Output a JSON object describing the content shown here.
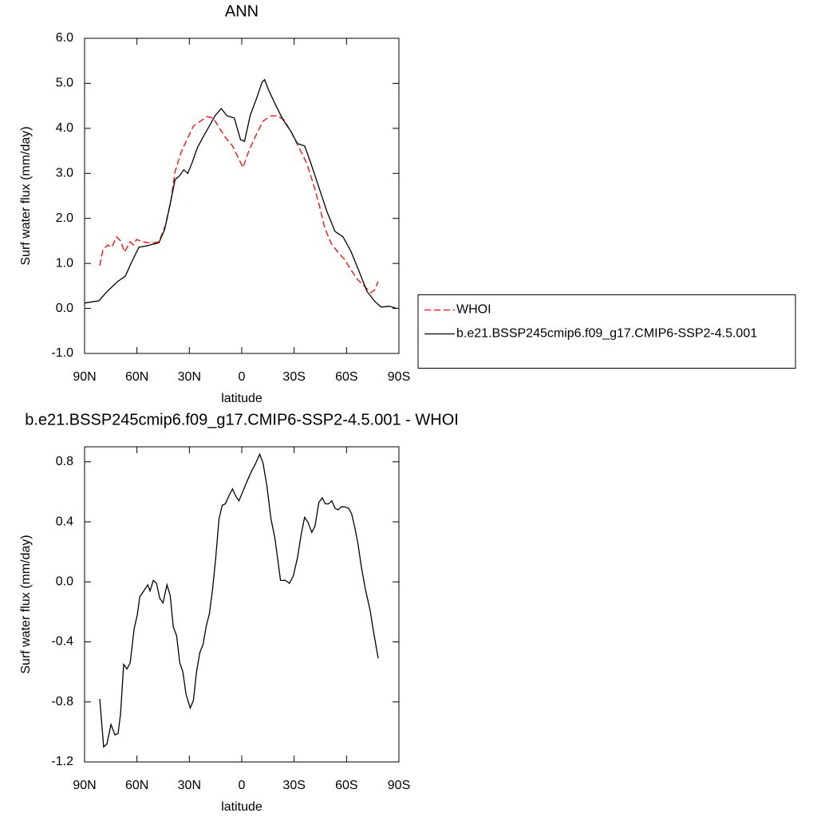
{
  "chart_data": [
    {
      "type": "line",
      "title": "ANN",
      "xlabel": "latitude",
      "ylabel": "Surf water flux (mm/day)",
      "xlim": [
        90,
        -90
      ],
      "xticks": [
        {
          "value": 90,
          "label": "90N"
        },
        {
          "value": 60,
          "label": "60N"
        },
        {
          "value": 30,
          "label": "30N"
        },
        0,
        {
          "value": -30,
          "label": "30S"
        },
        {
          "value": -60,
          "label": "60S"
        },
        {
          "value": -90,
          "label": "90S"
        }
      ],
      "ylim": [
        -1,
        6
      ],
      "yticks": [
        {
          "value": -1,
          "label": "-1.0"
        },
        {
          "value": 0,
          "label": "0.0"
        },
        {
          "value": 1,
          "label": "1.0"
        },
        {
          "value": 2,
          "label": "2.0"
        },
        {
          "value": 3,
          "label": "3.0"
        },
        {
          "value": 4,
          "label": "4.0"
        },
        {
          "value": 5,
          "label": "5.0"
        },
        {
          "value": 6,
          "label": "6.0"
        }
      ],
      "legend": "right",
      "series": [
        {
          "name": "WHOI",
          "color": "#ff0000",
          "dash": "dashed",
          "x": [
            81.3,
            79.5,
            76.7,
            74.4,
            71.7,
            69.4,
            67.1,
            63.9,
            62.1,
            60.2,
            56.6,
            52.0,
            47.4,
            43.7,
            40.5,
            38.2,
            34.6,
            31.4,
            27.7,
            23.6,
            19.9,
            16.3,
            13.0,
            9.4,
            5.3,
            2.5,
            -0.7,
            -3.9,
            -7.6,
            -12.2,
            -16.7,
            -20.4,
            -24.1,
            -28.2,
            -32.8,
            -37.3,
            -41.0,
            -44.2,
            -47.4,
            -51.1,
            -55.7,
            -58.9,
            -62.5,
            -66.2,
            -70.8,
            -74.0,
            -76.3,
            -78.1
          ],
          "values": [
            0.95,
            1.3,
            1.41,
            1.36,
            1.59,
            1.5,
            1.25,
            1.48,
            1.41,
            1.53,
            1.48,
            1.45,
            1.48,
            1.84,
            2.42,
            3.04,
            3.48,
            3.75,
            4.05,
            4.16,
            4.26,
            4.23,
            4.02,
            3.8,
            3.61,
            3.39,
            3.13,
            3.48,
            3.8,
            4.16,
            4.28,
            4.28,
            4.19,
            3.93,
            3.57,
            3.22,
            2.77,
            2.33,
            1.8,
            1.45,
            1.22,
            1.09,
            0.86,
            0.65,
            0.47,
            0.35,
            0.42,
            0.6
          ]
        },
        {
          "name": "b.e21.BSSP245cmip6.f09_g17.CMIP6-SSP2-4.5.001",
          "color": "#000000",
          "dash": "solid",
          "x": [
            90,
            81.8,
            77,
            71,
            66.6,
            63.4,
            58.9,
            54.3,
            47.4,
            44.2,
            41.4,
            38.2,
            35.5,
            33.2,
            30.9,
            28.6,
            25.4,
            21.7,
            19.0,
            15.3,
            11.7,
            8.5,
            4.3,
            0.7,
            -1.6,
            -4.8,
            -8.5,
            -11.7,
            -13.1,
            -15.4,
            -19.0,
            -23.6,
            -28.2,
            -31.9,
            -36.0,
            -39.6,
            -44.2,
            -48.8,
            -53.4,
            -58.0,
            -62.5,
            -67.1,
            -71.7,
            -76.3,
            -79.9,
            -84.5,
            -88.7
          ],
          "values": [
            0.12,
            0.17,
            0.38,
            0.6,
            0.72,
            1.0,
            1.36,
            1.39,
            1.46,
            1.75,
            2.24,
            2.86,
            2.95,
            3.08,
            3.0,
            3.22,
            3.57,
            3.84,
            4.02,
            4.28,
            4.44,
            4.28,
            4.23,
            3.75,
            3.71,
            4.28,
            4.67,
            5.03,
            5.08,
            4.85,
            4.55,
            4.19,
            3.93,
            3.66,
            3.61,
            3.22,
            2.69,
            2.15,
            1.71,
            1.59,
            1.27,
            0.83,
            0.38,
            0.15,
            0.03,
            0.05,
            0.0
          ]
        }
      ]
    },
    {
      "type": "line",
      "title": "b.e21.BSSP245cmip6.f09_g17.CMIP6-SSP2-4.5.001 - WHOI",
      "xlabel": "latitude",
      "ylabel": "Surf water flux (mm/day)",
      "xlim": [
        90,
        -90
      ],
      "xticks": [
        {
          "value": 90,
          "label": "90N"
        },
        {
          "value": 60,
          "label": "60N"
        },
        {
          "value": 30,
          "label": "30N"
        },
        0,
        {
          "value": -30,
          "label": "30S"
        },
        {
          "value": -60,
          "label": "60S"
        },
        {
          "value": -90,
          "label": "90S"
        }
      ],
      "ylim": [
        -1.2,
        0.9
      ],
      "yticks": [
        -1.2,
        -0.8,
        -0.4,
        {
          "value": 0,
          "label": "0.0"
        },
        0.4,
        0.8
      ],
      "series": [
        {
          "color": "#000000",
          "dash": "solid",
          "x": [
            81.3,
            79.1,
            77.2,
            74.9,
            72.6,
            70.8,
            69.4,
            67.6,
            65.7,
            63.9,
            61.6,
            59.8,
            58.4,
            56.1,
            53.8,
            52.5,
            50.6,
            48.8,
            46.9,
            45.1,
            42.8,
            41.0,
            39.2,
            37.3,
            35.5,
            33.7,
            31.9,
            29.5,
            27.7,
            25.9,
            24.0,
            22.2,
            20.4,
            18.5,
            16.7,
            14.9,
            13.0,
            11.2,
            9.4,
            7.5,
            5.3,
            3.4,
            1.6,
            -0.2,
            -3.0,
            -5.7,
            -7.6,
            -10.3,
            -12.2,
            -14.4,
            -16.7,
            -19.0,
            -22.2,
            -25.0,
            -27.3,
            -29.5,
            -31.9,
            -34.1,
            -36.0,
            -37.8,
            -40.1,
            -41.9,
            -44.2,
            -46.1,
            -47.9,
            -49.7,
            -51.6,
            -53.4,
            -55.2,
            -57.0,
            -58.9,
            -61.2,
            -63.0,
            -64.8,
            -66.6,
            -68.5,
            -70.8,
            -73.5,
            -75.3,
            -78.1
          ],
          "values": [
            -0.78,
            -1.1,
            -1.08,
            -0.95,
            -1.02,
            -1.01,
            -0.88,
            -0.55,
            -0.58,
            -0.54,
            -0.31,
            -0.22,
            -0.1,
            -0.06,
            -0.02,
            -0.06,
            0.01,
            -0.01,
            -0.11,
            -0.14,
            -0.02,
            -0.09,
            -0.3,
            -0.36,
            -0.54,
            -0.6,
            -0.75,
            -0.84,
            -0.79,
            -0.6,
            -0.47,
            -0.42,
            -0.3,
            -0.21,
            -0.05,
            0.16,
            0.42,
            0.51,
            0.52,
            0.57,
            0.62,
            0.57,
            0.54,
            0.59,
            0.67,
            0.74,
            0.78,
            0.85,
            0.79,
            0.64,
            0.42,
            0.29,
            0.01,
            0.01,
            -0.01,
            0.04,
            0.16,
            0.32,
            0.43,
            0.4,
            0.33,
            0.37,
            0.53,
            0.56,
            0.52,
            0.52,
            0.54,
            0.49,
            0.48,
            0.5,
            0.5,
            0.49,
            0.45,
            0.36,
            0.25,
            0.1,
            -0.05,
            -0.19,
            -0.32,
            -0.51
          ]
        }
      ]
    }
  ]
}
